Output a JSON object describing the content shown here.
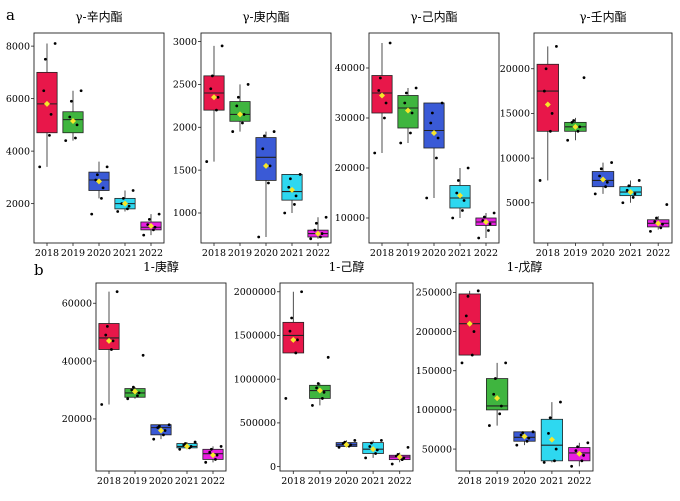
{
  "panels": [
    {
      "letter": "a"
    },
    {
      "letter": "b"
    }
  ],
  "colors": {
    "2018": "#e8174a",
    "2019": "#3fb53f",
    "2020": "#3a5ad6",
    "2021": "#2ed8f0",
    "2022": "#e81ee0",
    "mean_marker": "#f5e62a",
    "points": "#000000"
  },
  "chart_data": [
    {
      "type": "box",
      "title": "γ-辛内酯",
      "categories": [
        "2018",
        "2019",
        "2020",
        "2021",
        "2022"
      ],
      "ylim": [
        500,
        8500
      ],
      "yticks": [
        2000,
        4000,
        6000,
        8000
      ],
      "ytick_labels": [
        "2000",
        "4000",
        "6000",
        "8000"
      ],
      "boxes": [
        {
          "min": 3400,
          "q1": 4700,
          "median": 5800,
          "q3": 7000,
          "max": 8100,
          "mean": 5800,
          "points": [
            3400,
            4600,
            5400,
            6300,
            7500,
            8100
          ]
        },
        {
          "min": 4400,
          "q1": 4700,
          "median": 5200,
          "q3": 5500,
          "max": 6300,
          "mean": 5150,
          "points": [
            4400,
            4500,
            5000,
            5300,
            5900,
            6300
          ]
        },
        {
          "min": 2200,
          "q1": 2500,
          "median": 2900,
          "q3": 3200,
          "max": 3600,
          "mean": 2850,
          "points": [
            1600,
            2200,
            2600,
            2900,
            3100,
            3400
          ]
        },
        {
          "min": 1700,
          "q1": 1800,
          "median": 2000,
          "q3": 2200,
          "max": 2500,
          "mean": 2000,
          "points": [
            1700,
            1800,
            1900,
            2000,
            2200,
            2500
          ]
        },
        {
          "min": 800,
          "q1": 1000,
          "median": 1100,
          "q3": 1300,
          "max": 1600,
          "mean": 1150,
          "points": [
            800,
            1000,
            1100,
            1200,
            1400,
            1600
          ]
        }
      ]
    },
    {
      "type": "box",
      "title": "γ-庚内酯",
      "categories": [
        "2018",
        "2019",
        "2020",
        "2021",
        "2022"
      ],
      "ylim": [
        650,
        3100
      ],
      "yticks": [
        1000,
        1500,
        2000,
        2500,
        3000
      ],
      "ytick_labels": [
        "1000",
        "1500",
        "2000",
        "2500",
        "3000"
      ],
      "boxes": [
        {
          "min": 1600,
          "q1": 2200,
          "median": 2400,
          "q3": 2600,
          "max": 2950,
          "mean": 2350,
          "points": [
            1600,
            2200,
            2350,
            2450,
            2600,
            2950
          ]
        },
        {
          "min": 1950,
          "q1": 2070,
          "median": 2150,
          "q3": 2300,
          "max": 2500,
          "mean": 2150,
          "points": [
            1950,
            2050,
            2150,
            2250,
            2350,
            2500
          ]
        },
        {
          "min": 720,
          "q1": 1380,
          "median": 1650,
          "q3": 1880,
          "max": 1950,
          "mean": 1550,
          "points": [
            720,
            1350,
            1550,
            1750,
            1900,
            1950
          ]
        },
        {
          "min": 1000,
          "q1": 1150,
          "median": 1250,
          "q3": 1450,
          "max": 1450,
          "mean": 1270,
          "points": [
            1000,
            1100,
            1200,
            1300,
            1400,
            1450
          ]
        },
        {
          "min": 700,
          "q1": 720,
          "median": 760,
          "q3": 800,
          "max": 950,
          "mean": 760,
          "points": [
            700,
            720,
            760,
            800,
            880,
            950
          ]
        }
      ]
    },
    {
      "type": "box",
      "title": "γ-己内酯",
      "categories": [
        "2018",
        "2019",
        "2020",
        "2021",
        "2022"
      ],
      "ylim": [
        5000,
        47000
      ],
      "yticks": [
        10000,
        20000,
        30000,
        40000
      ],
      "ytick_labels": [
        "10000",
        "20000",
        "30000",
        "40000"
      ],
      "boxes": [
        {
          "min": 23000,
          "q1": 31000,
          "median": 35000,
          "q3": 38500,
          "max": 45000,
          "mean": 34500,
          "points": [
            23000,
            30000,
            33000,
            35500,
            38000,
            45000
          ]
        },
        {
          "min": 25000,
          "q1": 28000,
          "median": 32000,
          "q3": 34500,
          "max": 36000,
          "mean": 31500,
          "points": [
            25000,
            27000,
            31000,
            33000,
            35000,
            36000
          ]
        },
        {
          "min": 14000,
          "q1": 24000,
          "median": 27500,
          "q3": 33000,
          "max": 33000,
          "mean": 27000,
          "points": [
            14000,
            22000,
            26000,
            29000,
            31000,
            33000
          ]
        },
        {
          "min": 10000,
          "q1": 12000,
          "median": 14000,
          "q3": 16500,
          "max": 20000,
          "mean": 14500,
          "points": [
            10000,
            11500,
            13500,
            15000,
            17500,
            20000
          ]
        },
        {
          "min": 6000,
          "q1": 8500,
          "median": 9200,
          "q3": 10000,
          "max": 11000,
          "mean": 9200,
          "points": [
            6000,
            7500,
            8800,
            9500,
            10200,
            11000
          ]
        }
      ]
    },
    {
      "type": "box",
      "title": "γ-壬内酯",
      "categories": [
        "2018",
        "2019",
        "2020",
        "2021",
        "2022"
      ],
      "ylim": [
        500,
        24000
      ],
      "yticks": [
        5000,
        10000,
        15000,
        20000
      ],
      "ytick_labels": [
        "5000",
        "10000",
        "15000",
        "20000"
      ],
      "boxes": [
        {
          "min": 7500,
          "q1": 13000,
          "median": 17500,
          "q3": 20500,
          "max": 22500,
          "mean": 16000,
          "points": [
            7500,
            13000,
            15000,
            17500,
            20000,
            22500
          ]
        },
        {
          "min": 12000,
          "q1": 13000,
          "median": 13500,
          "q3": 14000,
          "max": 14500,
          "mean": 13500,
          "points": [
            12000,
            13000,
            13500,
            14000,
            14200,
            19000
          ]
        },
        {
          "min": 6000,
          "q1": 6800,
          "median": 7500,
          "q3": 8500,
          "max": 9500,
          "mean": 7600,
          "points": [
            6000,
            6800,
            7300,
            8000,
            8800,
            9500
          ]
        },
        {
          "min": 5000,
          "q1": 5800,
          "median": 6200,
          "q3": 6800,
          "max": 7500,
          "mean": 6200,
          "points": [
            5000,
            5600,
            6000,
            6400,
            6900,
            7500
          ]
        },
        {
          "min": 2000,
          "q1": 2300,
          "median": 2700,
          "q3": 3100,
          "max": 3500,
          "mean": 2700,
          "points": [
            1800,
            2200,
            2600,
            2900,
            3300,
            4800
          ]
        }
      ]
    },
    {
      "type": "box",
      "title": "1-庚醇",
      "categories": [
        "2018",
        "2019",
        "2020",
        "2021",
        "2022"
      ],
      "ylim": [
        2000,
        67000
      ],
      "yticks": [
        20000,
        40000,
        60000
      ],
      "ytick_labels": [
        "20000",
        "40000",
        "60000"
      ],
      "boxes": [
        {
          "min": 25000,
          "q1": 44000,
          "median": 48000,
          "q3": 53000,
          "max": 64000,
          "mean": 47000,
          "points": [
            25000,
            44000,
            47000,
            49000,
            52000,
            64000
          ]
        },
        {
          "min": 27000,
          "q1": 27500,
          "median": 29000,
          "q3": 30500,
          "max": 31000,
          "mean": 29500,
          "points": [
            27000,
            28000,
            29000,
            30000,
            31000,
            42000
          ]
        },
        {
          "min": 13000,
          "q1": 14500,
          "median": 17000,
          "q3": 18000,
          "max": 18000,
          "mean": 16000,
          "points": [
            13000,
            14500,
            16000,
            17000,
            17500,
            18000
          ]
        },
        {
          "min": 9500,
          "q1": 10000,
          "median": 10500,
          "q3": 11500,
          "max": 12000,
          "mean": 10500,
          "points": [
            9500,
            10000,
            10500,
            11000,
            11500,
            12000
          ]
        },
        {
          "min": 5000,
          "q1": 6000,
          "median": 8000,
          "q3": 9500,
          "max": 10500,
          "mean": 7500,
          "points": [
            5000,
            6000,
            7500,
            8500,
            9500,
            10500
          ]
        }
      ]
    },
    {
      "type": "box",
      "title": "1-己醇",
      "categories": [
        "2018",
        "2019",
        "2020",
        "2021",
        "2022"
      ],
      "ylim": [
        -50000,
        2100000
      ],
      "yticks": [
        0,
        500000,
        1000000,
        1500000,
        2000000
      ],
      "ytick_labels": [
        "0",
        "500000",
        "1000000",
        "1500000",
        "2000000"
      ],
      "boxes": [
        {
          "min": 1300000,
          "q1": 1300000,
          "median": 1500000,
          "q3": 1650000,
          "max": 2000000,
          "mean": 1450000,
          "points": [
            780000,
            1300000,
            1450000,
            1550000,
            1700000,
            2000000
          ]
        },
        {
          "min": 700000,
          "q1": 780000,
          "median": 870000,
          "q3": 930000,
          "max": 950000,
          "mean": 870000,
          "points": [
            700000,
            780000,
            850000,
            900000,
            950000,
            1250000
          ]
        },
        {
          "min": 220000,
          "q1": 230000,
          "median": 250000,
          "q3": 275000,
          "max": 300000,
          "mean": 250000,
          "points": [
            220000,
            235000,
            250000,
            265000,
            280000,
            300000
          ]
        },
        {
          "min": 100000,
          "q1": 150000,
          "median": 200000,
          "q3": 275000,
          "max": 300000,
          "mean": 200000,
          "points": [
            100000,
            150000,
            190000,
            230000,
            270000,
            300000
          ]
        },
        {
          "min": 50000,
          "q1": 80000,
          "median": 110000,
          "q3": 130000,
          "max": 160000,
          "mean": 110000,
          "points": [
            30000,
            80000,
            100000,
            120000,
            140000,
            220000
          ]
        }
      ]
    },
    {
      "type": "box",
      "title": "1-戊醇",
      "categories": [
        "2018",
        "2019",
        "2020",
        "2021",
        "2022"
      ],
      "ylim": [
        22000,
        262000
      ],
      "yticks": [
        50000,
        100000,
        150000,
        200000,
        250000
      ],
      "ytick_labels": [
        "50000",
        "100000",
        "150000",
        "200000",
        "250000"
      ],
      "boxes": [
        {
          "min": 170000,
          "q1": 170000,
          "median": 210000,
          "q3": 248000,
          "max": 252000,
          "mean": 210000,
          "points": [
            160000,
            170000,
            200000,
            220000,
            245000,
            252000
          ]
        },
        {
          "min": 80000,
          "q1": 100000,
          "median": 105000,
          "q3": 140000,
          "max": 160000,
          "mean": 115000,
          "points": [
            80000,
            95000,
            105000,
            120000,
            140000,
            160000
          ]
        },
        {
          "min": 55000,
          "q1": 60000,
          "median": 65000,
          "q3": 72000,
          "max": 72000,
          "mean": 66000,
          "points": [
            55000,
            60000,
            64000,
            68000,
            71000,
            72000
          ]
        },
        {
          "min": 33000,
          "q1": 35000,
          "median": 55000,
          "q3": 88000,
          "max": 110000,
          "mean": 62000,
          "points": [
            33000,
            35000,
            50000,
            70000,
            90000,
            110000
          ]
        },
        {
          "min": 28000,
          "q1": 35000,
          "median": 45000,
          "q3": 52000,
          "max": 58000,
          "mean": 44000,
          "points": [
            28000,
            35000,
            42000,
            48000,
            53000,
            58000
          ]
        }
      ]
    }
  ]
}
